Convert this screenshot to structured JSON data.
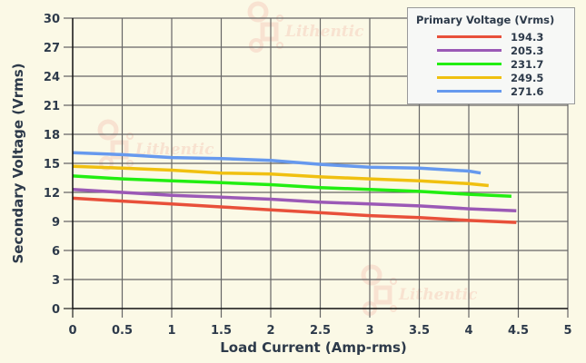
{
  "chart_data": {
    "type": "line",
    "title": "",
    "xlabel": "Load Current (Amp-rms)",
    "ylabel": "Secondary Voltage (Vrms)",
    "xlim": [
      0,
      5
    ],
    "ylim": [
      0,
      30
    ],
    "xticks": [
      "0",
      "0.5",
      "1",
      "1.5",
      "2",
      "2.5",
      "3",
      "3.5",
      "4",
      "4.5",
      "5"
    ],
    "yticks": [
      "0",
      "3",
      "6",
      "9",
      "12",
      "15",
      "18",
      "21",
      "24",
      "27",
      "30"
    ],
    "grid": true,
    "legend": {
      "title": "Primary Voltage (Vrms)",
      "position": "top-right"
    },
    "series": [
      {
        "name": "194.3",
        "color": "#e8503a",
        "x": [
          0,
          0.5,
          1,
          1.5,
          2,
          2.5,
          3,
          3.5,
          4,
          4.48
        ],
        "y": [
          11.4,
          11.1,
          10.8,
          10.5,
          10.2,
          9.9,
          9.6,
          9.4,
          9.1,
          8.9
        ]
      },
      {
        "name": "205.3",
        "color": "#9b59b6",
        "x": [
          0,
          0.5,
          1,
          1.5,
          2,
          2.5,
          3,
          3.5,
          4,
          4.48
        ],
        "y": [
          12.3,
          12.0,
          11.7,
          11.5,
          11.3,
          11.0,
          10.8,
          10.6,
          10.3,
          10.1
        ]
      },
      {
        "name": "231.7",
        "color": "#22ee11",
        "x": [
          0,
          0.5,
          1,
          1.5,
          2,
          2.5,
          3,
          3.5,
          4,
          4.43
        ],
        "y": [
          13.7,
          13.4,
          13.2,
          13.0,
          12.8,
          12.5,
          12.3,
          12.1,
          11.8,
          11.6
        ]
      },
      {
        "name": "249.5",
        "color": "#f0c010",
        "x": [
          0,
          0.5,
          1,
          1.5,
          2,
          2.5,
          3,
          3.5,
          4,
          4.2
        ],
        "y": [
          14.7,
          14.5,
          14.3,
          14.0,
          13.9,
          13.6,
          13.4,
          13.2,
          12.9,
          12.7
        ]
      },
      {
        "name": "271.6",
        "color": "#6699ee",
        "x": [
          0,
          0.5,
          1,
          1.5,
          2,
          2.5,
          3,
          3.5,
          4,
          4.12
        ],
        "y": [
          16.1,
          15.9,
          15.6,
          15.5,
          15.3,
          14.9,
          14.6,
          14.5,
          14.2,
          14.0
        ]
      }
    ]
  },
  "watermark": "Lithentic"
}
